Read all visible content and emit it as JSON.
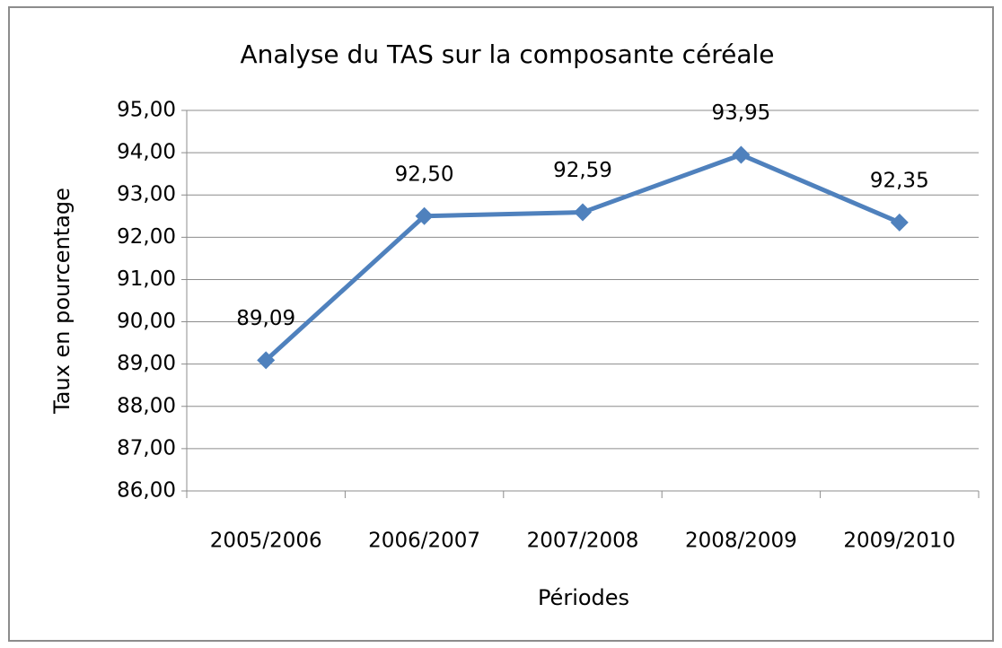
{
  "chart_data": {
    "type": "line",
    "title": "Analyse du TAS sur la composante céréale",
    "x_label": "Périodes",
    "y_label": "Taux en pourcentage",
    "categories": [
      "2005/2006",
      "2006/2007",
      "2007/2008",
      "2008/2009",
      "2009/2010"
    ],
    "values": [
      89.09,
      92.5,
      92.59,
      93.95,
      92.35
    ],
    "value_labels": [
      "89,09",
      "92,50",
      "92,59",
      "93,95",
      "92,35"
    ],
    "color": "#4f81bd",
    "ylim": [
      86,
      95
    ],
    "yticks": [
      {
        "value": 86,
        "label": "86,00"
      },
      {
        "value": 87,
        "label": "87,00"
      },
      {
        "value": 88,
        "label": "88,00"
      },
      {
        "value": 89,
        "label": "89,00"
      },
      {
        "value": 90,
        "label": "90,00"
      },
      {
        "value": 91,
        "label": "91,00"
      },
      {
        "value": 92,
        "label": "92,00"
      },
      {
        "value": 93,
        "label": "93,00"
      },
      {
        "value": 94,
        "label": "94,00"
      },
      {
        "value": 95,
        "label": "95,00"
      }
    ],
    "grid": true
  }
}
